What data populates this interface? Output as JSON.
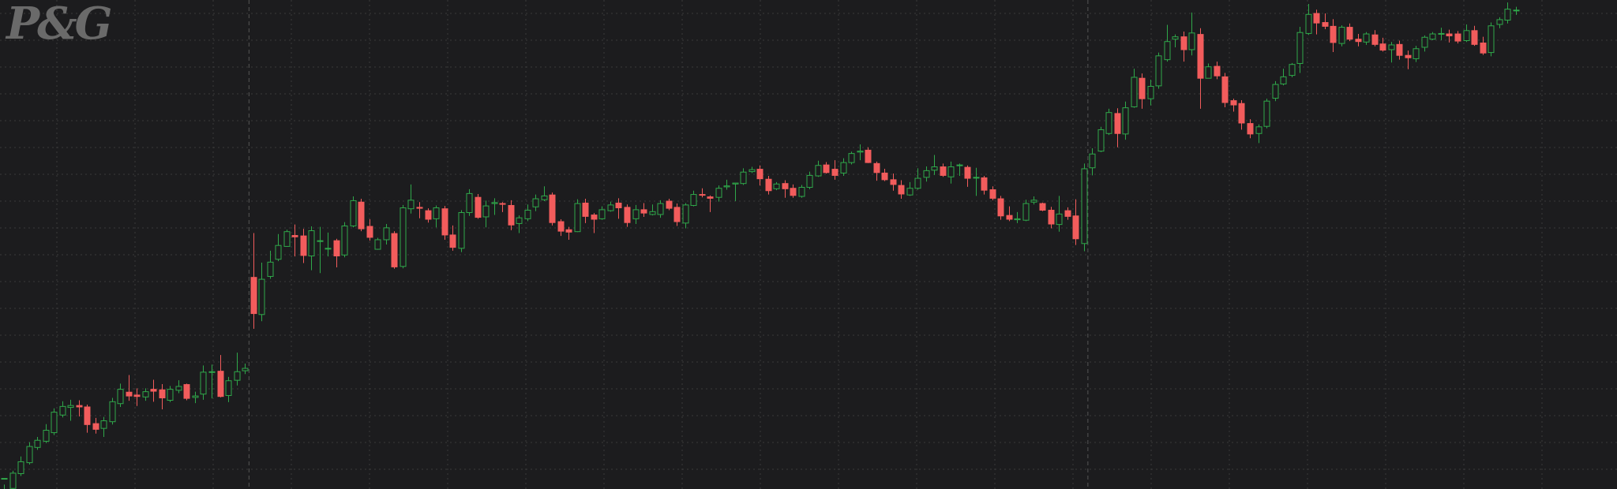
{
  "logo": {
    "text": "P&G"
  },
  "theme": {
    "background": "#1c1c1e",
    "grid": "#3a3a3a",
    "separator": "#555555",
    "up": "#2fa84a",
    "down": "#f25c5c"
  },
  "chart_data": {
    "type": "candlestick",
    "title": "",
    "xlabel": "",
    "ylabel": "",
    "grid": true,
    "legend": "none",
    "ylim": [
      0,
      100
    ],
    "session_breaks": [
      30,
      131
    ],
    "candles": [
      [
        0.9,
        0.9,
        -0.4,
        -2.1
      ],
      [
        -1.2,
        2.0,
        2.5,
        -1.5
      ],
      [
        1.9,
        4.4,
        5.5,
        1.4
      ],
      [
        4.2,
        7.6,
        8.5,
        3.8
      ],
      [
        7.4,
        8.9,
        9.6,
        6.9
      ],
      [
        8.7,
        11.0,
        12.3,
        8.3
      ],
      [
        10.5,
        14.8,
        15.6,
        10.0
      ],
      [
        14.2,
        16.0,
        17.1,
        13.7
      ],
      [
        15.8,
        16.2,
        17.4,
        13.0
      ],
      [
        16.2,
        15.9,
        17.3,
        13.9
      ],
      [
        15.9,
        12.2,
        16.4,
        10.5
      ],
      [
        12.4,
        11.2,
        13.6,
        10.3
      ],
      [
        11.4,
        13.0,
        13.8,
        9.6
      ],
      [
        12.8,
        17.0,
        17.8,
        12.2
      ],
      [
        16.6,
        19.6,
        20.8,
        15.9
      ],
      [
        19.0,
        18.2,
        22.6,
        17.2
      ],
      [
        18.4,
        18.1,
        19.8,
        16.1
      ],
      [
        18.0,
        19.1,
        19.8,
        17.2
      ],
      [
        19.6,
        19.2,
        21.6,
        17.0
      ],
      [
        19.5,
        17.8,
        20.7,
        15.4
      ],
      [
        17.3,
        19.6,
        20.3,
        16.9
      ],
      [
        19.4,
        20.2,
        21.5,
        18.8
      ],
      [
        20.6,
        17.7,
        20.8,
        17.3
      ],
      [
        17.9,
        18.2,
        19.1,
        16.7
      ],
      [
        18.6,
        23.2,
        24.6,
        17.4
      ],
      [
        23.3,
        23.3,
        24.8,
        17.7
      ],
      [
        23.4,
        18.1,
        26.8,
        17.9
      ],
      [
        18.3,
        21.4,
        22.2,
        16.9
      ],
      [
        21.5,
        23.3,
        27.3,
        20.4
      ],
      [
        23.5,
        24.0,
        25.0,
        22.8
      ],
      [
        43.1,
        35.5,
        52.4,
        32.3
      ],
      [
        35.3,
        42.7,
        46.2,
        33.9
      ],
      [
        43.3,
        46.3,
        48.7,
        42.8
      ],
      [
        46.9,
        49.8,
        52.2,
        46.5
      ],
      [
        49.6,
        52.7,
        53.1,
        49.5
      ],
      [
        51.9,
        51.6,
        54.2,
        47.5
      ],
      [
        51.8,
        47.7,
        53.3,
        46.1
      ],
      [
        47.6,
        52.9,
        53.8,
        44.6
      ],
      [
        50.8,
        50.8,
        53.7,
        44.0
      ],
      [
        49.2,
        49.2,
        52.5,
        47.5
      ],
      [
        50.8,
        47.6,
        51.2,
        45.2
      ],
      [
        47.8,
        53.9,
        54.7,
        47.3
      ],
      [
        53.9,
        59.2,
        60.1,
        53.6
      ],
      [
        58.9,
        53.3,
        59.6,
        52.8
      ],
      [
        53.8,
        51.5,
        55.3,
        50.8
      ],
      [
        49.0,
        51.0,
        51.4,
        48.9
      ],
      [
        51.0,
        53.5,
        54.3,
        50.0
      ],
      [
        52.3,
        45.3,
        52.8,
        44.9
      ],
      [
        45.4,
        57.7,
        58.3,
        45.0
      ],
      [
        57.5,
        59.3,
        62.6,
        56.5
      ],
      [
        57.8,
        57.6,
        58.9,
        55.5
      ],
      [
        57.1,
        55.3,
        57.6,
        54.6
      ],
      [
        55.4,
        57.7,
        58.2,
        53.6
      ],
      [
        57.5,
        52.0,
        58.1,
        51.0
      ],
      [
        52.0,
        49.4,
        54.0,
        48.7
      ],
      [
        49.2,
        56.7,
        57.2,
        48.4
      ],
      [
        56.7,
        60.7,
        61.6,
        56.0
      ],
      [
        59.9,
        55.7,
        60.6,
        55.4
      ],
      [
        55.8,
        58.1,
        59.2,
        53.6
      ],
      [
        58.6,
        58.8,
        59.7,
        56.2
      ],
      [
        58.6,
        58.5,
        58.9,
        56.8
      ],
      [
        58.2,
        54.1,
        59.3,
        53.0
      ],
      [
        54.4,
        55.6,
        56.1,
        52.4
      ],
      [
        55.4,
        57.2,
        58.4,
        54.9
      ],
      [
        57.9,
        59.6,
        60.5,
        57.0
      ],
      [
        59.4,
        60.2,
        62.2,
        59.1
      ],
      [
        60.4,
        54.6,
        60.9,
        54.0
      ],
      [
        54.8,
        52.8,
        55.3,
        51.8
      ],
      [
        53.1,
        52.6,
        53.7,
        51.0
      ],
      [
        52.7,
        58.6,
        59.5,
        52.6
      ],
      [
        58.7,
        55.9,
        59.6,
        54.5
      ],
      [
        56.2,
        55.3,
        56.6,
        52.4
      ],
      [
        55.4,
        57.3,
        58.0,
        55.2
      ],
      [
        57.1,
        58.3,
        59.0,
        56.9
      ],
      [
        58.7,
        57.7,
        59.7,
        55.4
      ],
      [
        57.8,
        54.6,
        58.4,
        53.7
      ],
      [
        55.4,
        57.3,
        58.3,
        54.3
      ],
      [
        57.3,
        56.6,
        58.7,
        55.8
      ],
      [
        56.3,
        56.9,
        58.4,
        56.1
      ],
      [
        56.3,
        58.6,
        59.3,
        55.6
      ],
      [
        59.1,
        57.6,
        59.6,
        57.2
      ],
      [
        57.8,
        54.8,
        58.6,
        53.9
      ],
      [
        54.5,
        58.3,
        58.7,
        53.4
      ],
      [
        58.2,
        60.5,
        61.3,
        58.0
      ],
      [
        60.5,
        60.4,
        61.8,
        59.9
      ],
      [
        60.0,
        59.7,
        60.3,
        56.8
      ],
      [
        59.9,
        61.8,
        62.4,
        59.0
      ],
      [
        62.1,
        62.3,
        63.6,
        61.5
      ],
      [
        62.7,
        62.9,
        62.9,
        59.1
      ],
      [
        62.8,
        65.2,
        66.0,
        62.5
      ],
      [
        65.3,
        65.7,
        66.3,
        65.0
      ],
      [
        65.8,
        63.8,
        66.6,
        62.4
      ],
      [
        63.7,
        61.3,
        64.4,
        60.5
      ],
      [
        61.7,
        62.7,
        63.1,
        61.4
      ],
      [
        62.8,
        61.7,
        63.5,
        59.8
      ],
      [
        61.8,
        60.3,
        62.6,
        59.8
      ],
      [
        60.1,
        62.0,
        62.5,
        59.8
      ],
      [
        62.0,
        64.5,
        65.3,
        61.6
      ],
      [
        64.4,
        66.6,
        67.6,
        64.2
      ],
      [
        66.7,
        65.1,
        67.3,
        64.9
      ],
      [
        65.8,
        64.5,
        67.7,
        63.6
      ],
      [
        65.0,
        67.2,
        68.1,
        64.4
      ],
      [
        67.2,
        69.1,
        69.5,
        66.8
      ],
      [
        69.4,
        69.6,
        71.0,
        67.7
      ],
      [
        69.8,
        67.2,
        70.4,
        67.1
      ],
      [
        67.0,
        65.1,
        67.4,
        63.4
      ],
      [
        65.0,
        63.6,
        65.9,
        63.3
      ],
      [
        63.6,
        62.6,
        64.9,
        61.3
      ],
      [
        62.4,
        60.6,
        63.5,
        59.6
      ],
      [
        60.4,
        61.8,
        63.1,
        60.2
      ],
      [
        61.8,
        63.9,
        66.0,
        61.5
      ],
      [
        64.1,
        65.5,
        66.4,
        63.2
      ],
      [
        65.6,
        66.3,
        68.8,
        64.6
      ],
      [
        66.3,
        64.5,
        67.0,
        64.2
      ],
      [
        64.2,
        66.3,
        67.4,
        62.8
      ],
      [
        66.6,
        66.7,
        67.0,
        64.4
      ],
      [
        66.2,
        63.9,
        66.6,
        62.1
      ],
      [
        64.0,
        64.1,
        66.1,
        60.2
      ],
      [
        64.0,
        61.4,
        64.4,
        60.5
      ],
      [
        61.5,
        59.7,
        62.2,
        59.3
      ],
      [
        59.6,
        56.0,
        60.2,
        55.2
      ],
      [
        56.1,
        55.3,
        58.0,
        54.9
      ],
      [
        55.2,
        55.4,
        56.8,
        54.5
      ],
      [
        55.1,
        58.6,
        59.4,
        54.9
      ],
      [
        58.9,
        59.3,
        60.1,
        58.4
      ],
      [
        58.6,
        57.2,
        58.8,
        57.0
      ],
      [
        57.2,
        54.3,
        57.9,
        53.4
      ],
      [
        54.2,
        56.4,
        60.2,
        52.7
      ],
      [
        57.1,
        55.9,
        57.8,
        55.2
      ],
      [
        56.0,
        51.2,
        59.5,
        49.9
      ],
      [
        50.2,
        65.9,
        67.0,
        48.6
      ],
      [
        66.1,
        69.0,
        70.2,
        64.5
      ],
      [
        69.6,
        74.1,
        74.7,
        69.4
      ],
      [
        73.3,
        77.7,
        78.5,
        73.0
      ],
      [
        77.5,
        73.3,
        78.6,
        70.4
      ],
      [
        73.2,
        78.7,
        80.0,
        72.0
      ],
      [
        78.9,
        85.1,
        86.9,
        78.7
      ],
      [
        84.9,
        80.6,
        85.9,
        78.5
      ],
      [
        80.6,
        83.2,
        84.6,
        79.2
      ],
      [
        83.3,
        89.6,
        90.3,
        82.7
      ],
      [
        88.8,
        92.6,
        96.1,
        88.4
      ],
      [
        93.1,
        93.6,
        94.1,
        91.4
      ],
      [
        93.6,
        90.9,
        94.7,
        88.4
      ],
      [
        90.9,
        94.4,
        98.7,
        89.7
      ],
      [
        94.1,
        84.9,
        95.4,
        78.5
      ],
      [
        84.9,
        87.3,
        88.0,
        84.9
      ],
      [
        87.4,
        85.4,
        88.4,
        84.7
      ],
      [
        85.2,
        79.8,
        86.0,
        78.8
      ],
      [
        80.2,
        79.3,
        80.6,
        77.9
      ],
      [
        79.6,
        75.5,
        80.3,
        74.1
      ],
      [
        75.4,
        73.2,
        76.3,
        72.3
      ],
      [
        73.3,
        74.7,
        75.2,
        71.3
      ],
      [
        74.8,
        80.1,
        80.6,
        74.4
      ],
      [
        80.7,
        83.6,
        84.3,
        80.1
      ],
      [
        83.7,
        85.2,
        86.9,
        83.4
      ],
      [
        85.5,
        87.8,
        88.1,
        85.1
      ],
      [
        88.0,
        94.5,
        95.7,
        86.0
      ],
      [
        94.3,
        98.3,
        100.5,
        94.0
      ],
      [
        98.5,
        96.5,
        99.3,
        94.1
      ],
      [
        96.6,
        95.8,
        98.5,
        95.2
      ],
      [
        95.8,
        92.4,
        97.3,
        90.4
      ],
      [
        92.2,
        95.6,
        96.0,
        91.6
      ],
      [
        95.6,
        93.1,
        96.4,
        92.7
      ],
      [
        93.1,
        92.6,
        94.2,
        91.6
      ],
      [
        92.5,
        94.2,
        94.6,
        91.9
      ],
      [
        94.0,
        92.0,
        95.0,
        91.6
      ],
      [
        92.1,
        90.8,
        93.4,
        90.5
      ],
      [
        90.9,
        91.9,
        92.5,
        88.2
      ],
      [
        92.0,
        89.7,
        92.8,
        88.8
      ],
      [
        89.7,
        89.2,
        90.7,
        86.8
      ],
      [
        89.0,
        91.1,
        91.7,
        88.3
      ],
      [
        91.4,
        93.5,
        93.9,
        90.5
      ],
      [
        93.1,
        94.2,
        94.6,
        92.9
      ],
      [
        94.2,
        94.3,
        95.5,
        92.9
      ],
      [
        94.2,
        93.8,
        95.1,
        92.4
      ],
      [
        94.2,
        92.7,
        94.8,
        92.2
      ],
      [
        92.8,
        94.9,
        96.2,
        92.5
      ],
      [
        94.9,
        92.0,
        95.9,
        91.7
      ],
      [
        92.3,
        90.2,
        93.6,
        89.8
      ],
      [
        90.3,
        95.9,
        96.6,
        89.5
      ],
      [
        96.2,
        97.2,
        97.7,
        95.4
      ],
      [
        97.1,
        99.4,
        100.8,
        96.4
      ],
      [
        99.1,
        99.2,
        99.9,
        98.2
      ]
    ]
  }
}
